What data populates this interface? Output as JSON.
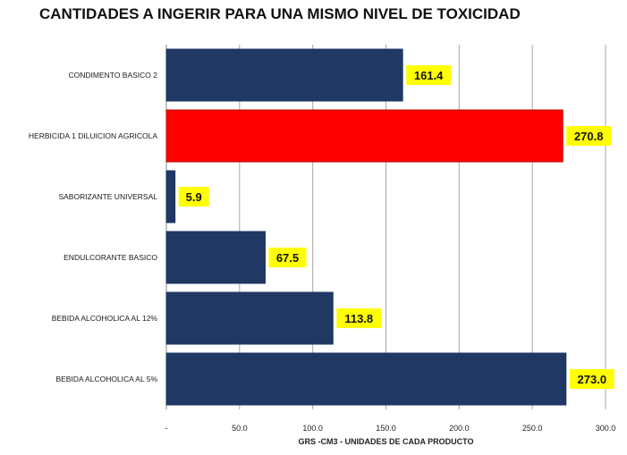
{
  "chart_data": {
    "type": "bar",
    "orientation": "horizontal",
    "title": "CANTIDADES A INGERIR PARA UNA  MISMO NIVEL DE TOXICIDAD",
    "xlabel": "GRS -CM3 - UNIDADES DE CADA PRODUCTO",
    "ylabel": "",
    "categories": [
      "CONDIMENTO  BASICO 2",
      "HERBICIDA 1 DILUICION AGRICOLA",
      "SABORIZANTE UNIVERSAL",
      "ENDULCORANTE BASICO",
      "BEBIDA ALCOHOLICA AL 12%",
      "BEBIDA ALCOHOLICA AL 5%"
    ],
    "values": [
      161.4,
      270.8,
      5.9,
      67.5,
      113.8,
      273.0
    ],
    "value_labels": [
      "161.4",
      "270.8",
      "5.9",
      "67.5",
      "113.8",
      "273.0"
    ],
    "bar_colors": [
      "#1f3864",
      "#ff0000",
      "#1f3864",
      "#1f3864",
      "#1f3864",
      "#1f3864"
    ],
    "data_label_background": "#ffff00",
    "xlim": [
      0,
      300
    ],
    "xticks": [
      0,
      50,
      100,
      150,
      200,
      250,
      300
    ],
    "xtick_labels": [
      "-",
      "50.0",
      "100.0",
      "150.0",
      "200.0",
      "250.0",
      "300.0"
    ],
    "grid": "vertical gridlines",
    "legend": "none"
  }
}
